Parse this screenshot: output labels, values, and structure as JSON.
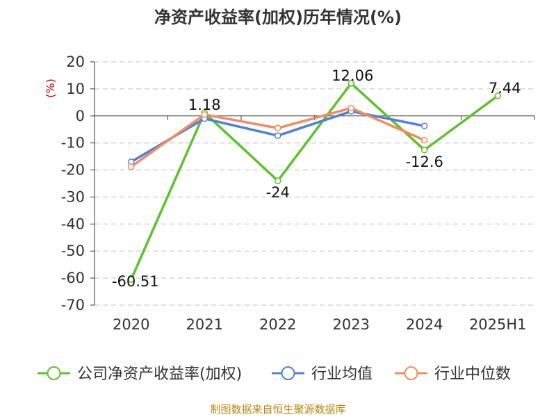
{
  "chart_data": {
    "type": "line",
    "title": "净资产收益率(加权)历年情况(%)",
    "ylabel": "(%)",
    "categories": [
      "2020",
      "2021",
      "2022",
      "2023",
      "2024",
      "2025H1"
    ],
    "ylim": [
      -70,
      20
    ],
    "yticks": [
      20,
      10,
      0,
      -10,
      -20,
      -30,
      -40,
      -50,
      -60,
      -70
    ],
    "grid": true,
    "legend_position": "bottom",
    "series": [
      {
        "name": "公司净资产收益率(加权)",
        "color": "#5cc22a",
        "values": [
          -60.51,
          1.18,
          -24,
          12.06,
          -12.6,
          7.44
        ],
        "labels": [
          "-60.51",
          "1.18",
          "-24",
          "12.06",
          "-12.6",
          "7.44"
        ]
      },
      {
        "name": "行业均值",
        "color": "#4f7fe0",
        "values": [
          -17,
          -1,
          -7.3,
          1.7,
          -3.7,
          null
        ]
      },
      {
        "name": "行业中位数",
        "color": "#f58a5c",
        "values": [
          -18.8,
          0.5,
          -4.5,
          2.9,
          -9,
          null
        ]
      }
    ]
  },
  "source_text": "制图数据来自恒生聚源数据库"
}
